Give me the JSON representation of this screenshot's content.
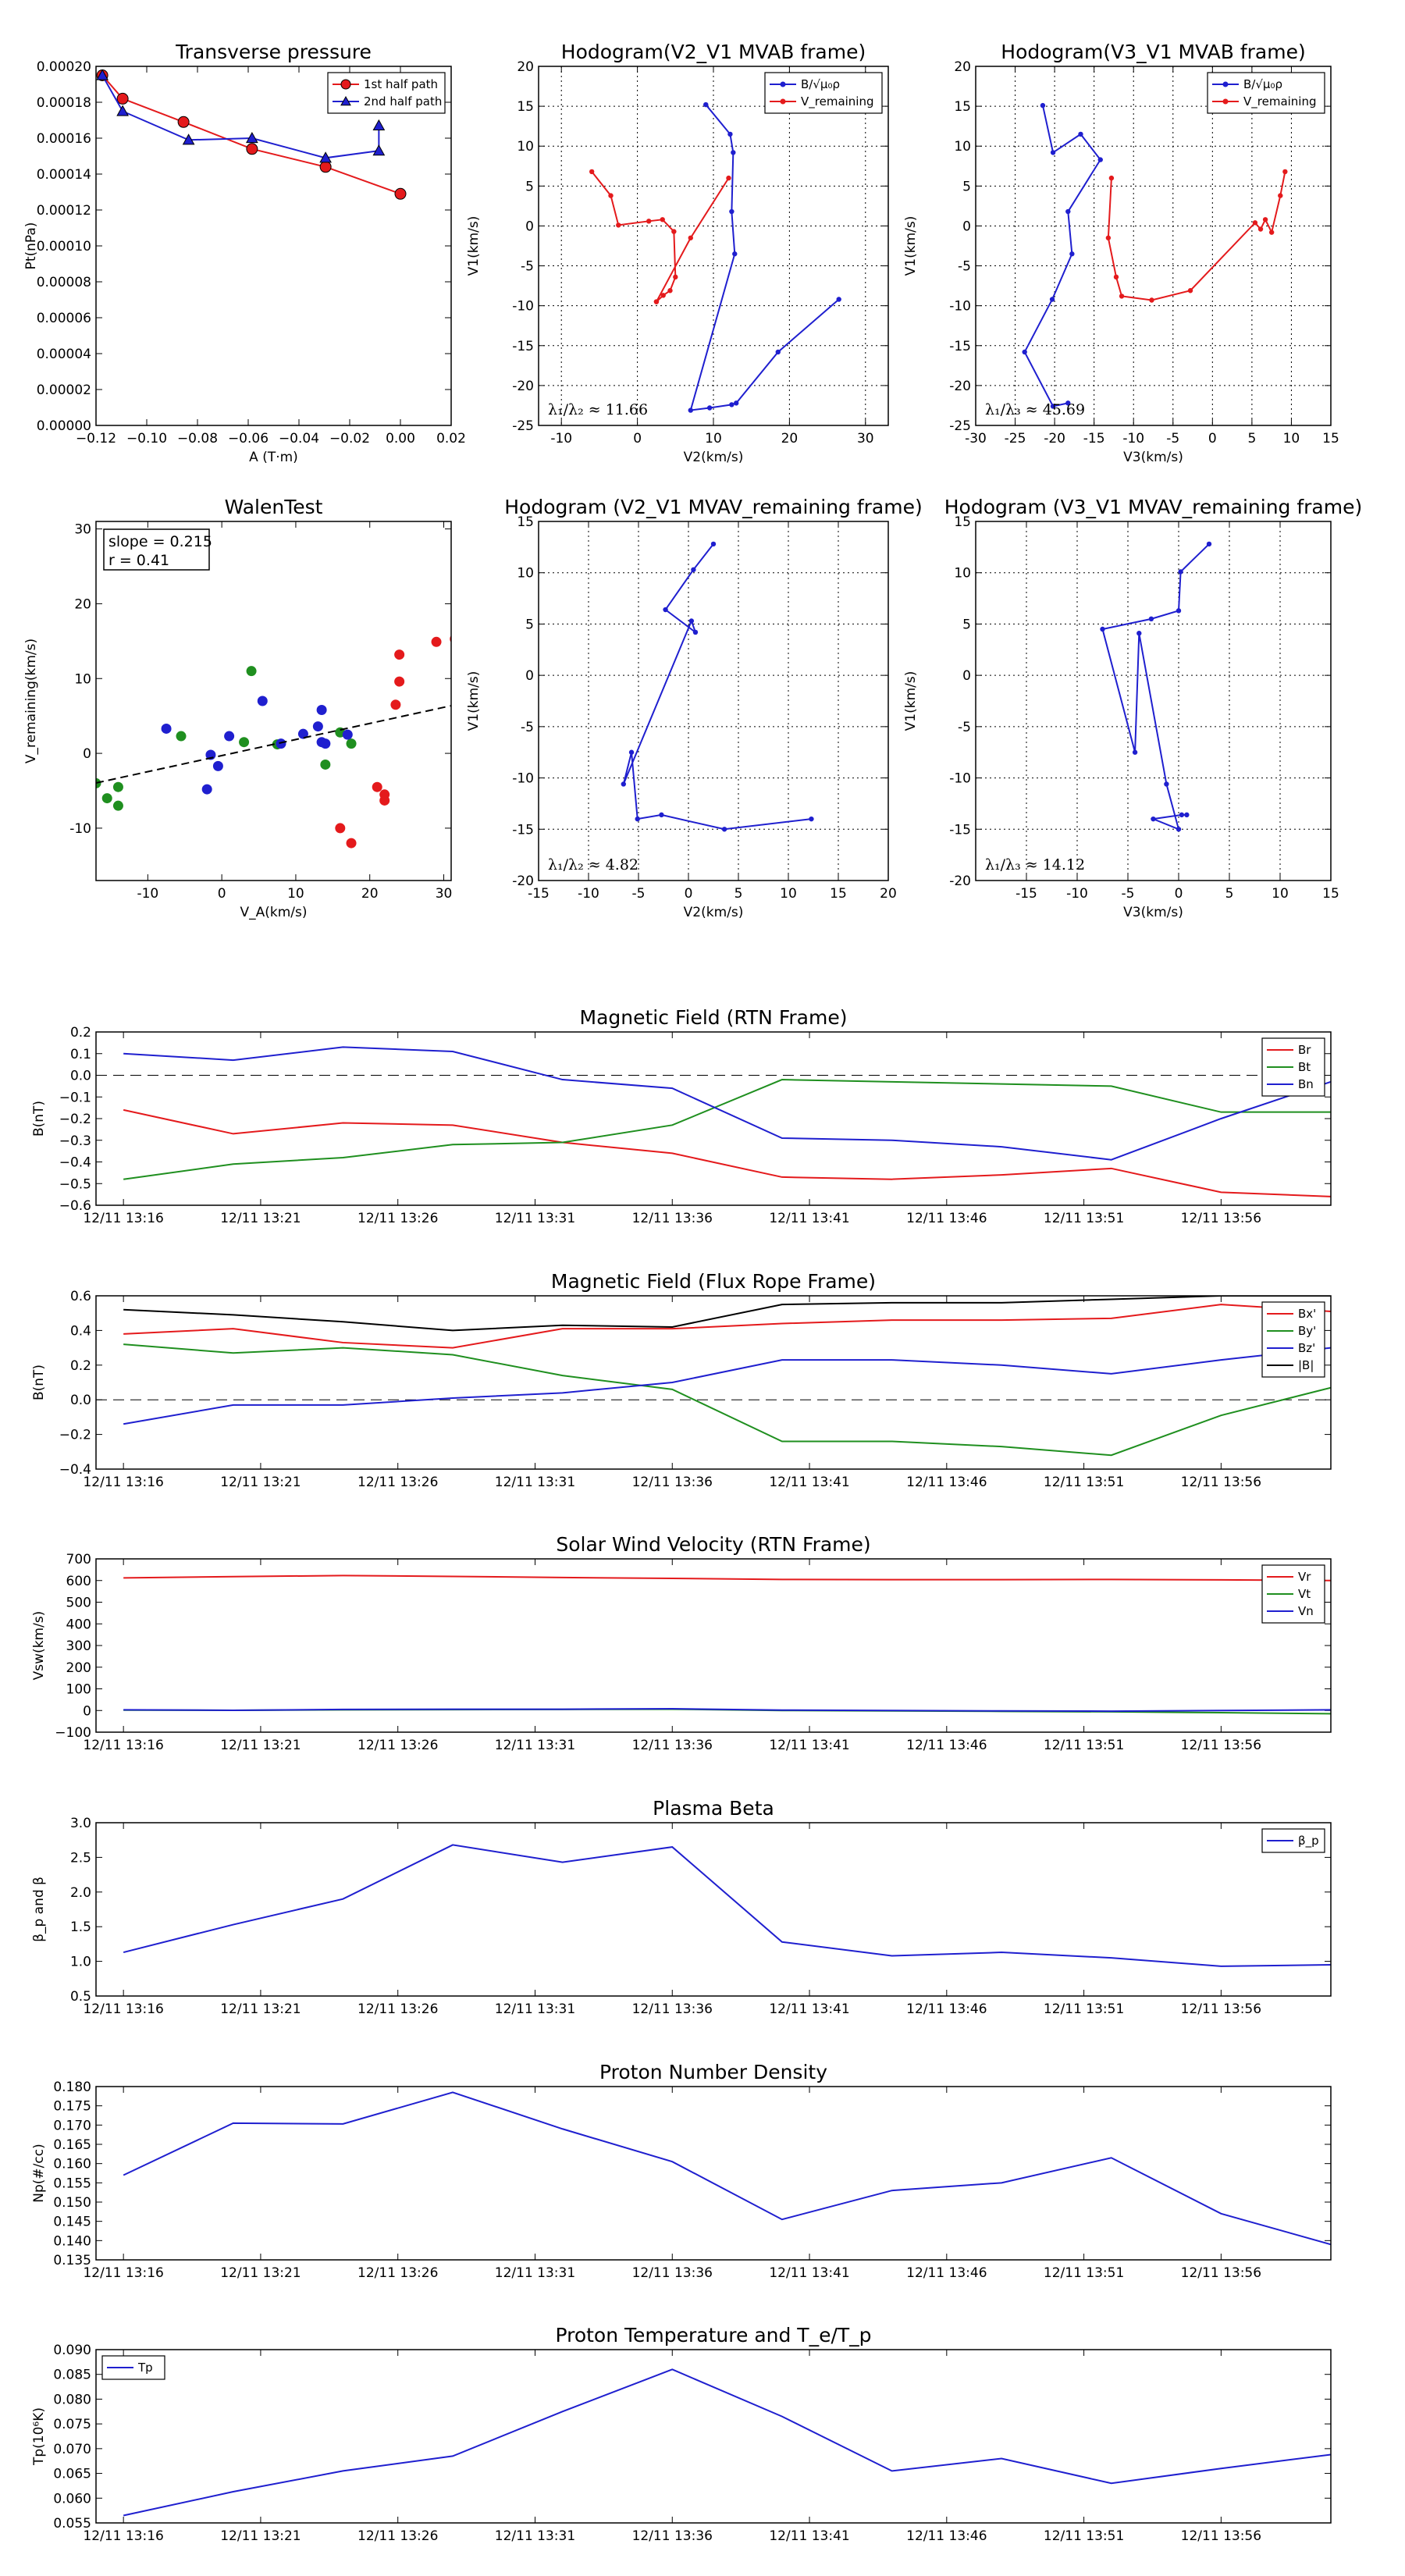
{
  "chart_data": [
    {
      "id": "transverse_pressure",
      "type": "line",
      "title": "Transverse pressure",
      "xlabel": "A (T·m)",
      "ylabel": "Pt(nPa)",
      "xlim": [
        -0.12,
        0.02
      ],
      "ylim": [
        0,
        0.0002
      ],
      "xticks": [
        "−0.12",
        "−0.10",
        "−0.08",
        "−0.06",
        "−0.04",
        "−0.02",
        "0.00",
        "0.02"
      ],
      "yticks": [
        "0.00000",
        "0.00002",
        "0.00004",
        "0.00006",
        "0.00008",
        "0.00010",
        "0.00012",
        "0.00014",
        "0.00016",
        "0.00018",
        "0.00020"
      ],
      "legend": "top-right",
      "series": [
        {
          "name": "1st half path",
          "color": "#e41a1c",
          "marker": "circle",
          "x": [
            -0.1175,
            -0.1095,
            -0.0855,
            -0.0585,
            -0.0295,
            0.0
          ],
          "y": [
            0.000195,
            0.000182,
            0.000169,
            0.000154,
            0.000144,
            0.000129
          ]
        },
        {
          "name": "2nd half path",
          "color": "#1f1fcf",
          "marker": "triangle",
          "x": [
            -0.1175,
            -0.1095,
            -0.0835,
            -0.0585,
            -0.0295,
            -0.0085,
            -0.0085
          ],
          "y": [
            0.000195,
            0.000175,
            0.000159,
            0.00016,
            0.000149,
            0.000153,
            0.000167
          ]
        }
      ]
    },
    {
      "id": "hodogram_v2_mvab",
      "type": "line",
      "title": "Hodogram(V2_V1 MVAB frame)",
      "xlabel": "V2(km/s)",
      "ylabel": "V1(km/s)",
      "xlim": [
        -13,
        33
      ],
      "ylim": [
        -25,
        20
      ],
      "xticks": [
        -10,
        0,
        10,
        20,
        30
      ],
      "yticks": [
        -25,
        -20,
        -15,
        -10,
        -5,
        0,
        5,
        10,
        15,
        20
      ],
      "grid": true,
      "legend": "top-right",
      "annotation": "λ₁/λ₂ ≈ 11.66",
      "series": [
        {
          "name": "B/√μ₀ρ",
          "color": "#1f1fcf",
          "x": [
            26.5,
            18.5,
            13,
            12.4,
            9.5,
            7,
            12.8,
            12.4,
            12.6,
            12.2,
            9
          ],
          "y": [
            -9.2,
            -15.8,
            -22.2,
            -22.4,
            -22.8,
            -23.1,
            -3.5,
            1.8,
            9.2,
            11.5,
            15.2
          ]
        },
        {
          "name": "V_remaining",
          "color": "#e41a1c",
          "x": [
            -6,
            -3.5,
            -2.5,
            1.5,
            3.3,
            4.8,
            5,
            4.3,
            3.4,
            2.5,
            2.5,
            7,
            12
          ],
          "y": [
            6.8,
            3.8,
            0.1,
            0.6,
            0.8,
            -0.7,
            -6.4,
            -8.1,
            -8.7,
            -9.5,
            -9.5,
            -1.5,
            6
          ]
        }
      ]
    },
    {
      "id": "hodogram_v3_mvab",
      "type": "line",
      "title": "Hodogram(V3_V1 MVAB frame)",
      "xlabel": "V3(km/s)",
      "ylabel": "V1(km/s)",
      "xlim": [
        -30,
        15
      ],
      "ylim": [
        -25,
        20
      ],
      "xticks": [
        -30,
        -25,
        -20,
        -15,
        -10,
        -5,
        0,
        5,
        10,
        15
      ],
      "yticks": [
        -25,
        -20,
        -15,
        -10,
        -5,
        0,
        5,
        10,
        15,
        20
      ],
      "grid": true,
      "legend": "top-right",
      "annotation": "λ₁/λ₃ ≈ 45.69",
      "series": [
        {
          "name": "B/√μ₀ρ",
          "color": "#1f1fcf",
          "x": [
            -21.5,
            -20.2,
            -16.7,
            -14.2,
            -18.3,
            -17.8,
            -20.3,
            -23.8,
            -20.2,
            -18.3
          ],
          "y": [
            15.1,
            9.2,
            11.5,
            8.3,
            1.8,
            -3.5,
            -9.2,
            -15.8,
            -22.6,
            -22.2
          ]
        },
        {
          "name": "V_remaining",
          "color": "#e41a1c",
          "x": [
            9.2,
            8.6,
            7.5,
            6.7,
            6.1,
            5.4,
            -2.8,
            -7.7,
            -11.5,
            -12.2,
            -13.2,
            -12.8
          ],
          "y": [
            6.8,
            3.8,
            -0.8,
            0.8,
            -0.4,
            0.4,
            -8.1,
            -9.3,
            -8.8,
            -6.4,
            -1.5,
            6
          ]
        }
      ]
    },
    {
      "id": "walen_test",
      "type": "scatter",
      "title": "WalenTest",
      "xlabel": "V_A(km/s)",
      "ylabel": "V_remaining(km/s)",
      "xlim": [
        -17,
        31
      ],
      "ylim": [
        -17,
        31
      ],
      "xticks": [
        -10,
        0,
        10,
        20,
        30
      ],
      "yticks": [
        -10,
        0,
        10,
        20,
        30
      ],
      "annotation": [
        "slope = 0.215",
        "r = 0.41"
      ],
      "fit": {
        "slope": 0.215,
        "intercept": -0.3,
        "color": "#000000"
      },
      "series": [
        {
          "name": "",
          "color": "#e41a1c",
          "x": [
            29,
            31.5,
            24,
            24,
            23.5,
            21,
            22,
            22,
            16,
            17.5
          ],
          "y": [
            14.9,
            15.3,
            13.2,
            9.6,
            6.5,
            -4.5,
            -5.5,
            -6.3,
            -10,
            -12
          ]
        },
        {
          "name": "",
          "color": "#1f8f1f",
          "x": [
            4,
            -5.5,
            3,
            7.5,
            16,
            17.5,
            14,
            -14,
            -14,
            -15.5,
            -17
          ],
          "y": [
            11,
            2.3,
            1.5,
            1.2,
            2.8,
            1.3,
            -1.5,
            -4.5,
            -7,
            -6,
            -4
          ]
        },
        {
          "name": "",
          "color": "#1f1fcf",
          "x": [
            5.5,
            13.5,
            -7.5,
            1,
            8,
            11,
            13,
            13.5,
            14,
            17,
            -1.5,
            -2,
            -0.5
          ],
          "y": [
            7,
            5.8,
            3.3,
            2.3,
            1.3,
            2.6,
            3.6,
            1.5,
            1.3,
            2.5,
            -0.2,
            -4.8,
            -1.7
          ]
        }
      ]
    },
    {
      "id": "hodogram_v2_mvav",
      "type": "line",
      "title": "Hodogram (V2_V1 MVAV_remaining frame)",
      "xlabel": "V2(km/s)",
      "ylabel": "V1(km/s)",
      "xlim": [
        -15,
        20
      ],
      "ylim": [
        -20,
        15
      ],
      "xticks": [
        -15,
        -10,
        -5,
        0,
        5,
        10,
        15,
        20
      ],
      "yticks": [
        -20,
        -15,
        -10,
        -5,
        0,
        5,
        10,
        15
      ],
      "grid": true,
      "annotation": "λ₁/λ₂ ≈ 4.82",
      "series": [
        {
          "name": "",
          "color": "#1f1fcf",
          "x": [
            12.3,
            3.6,
            -2.7,
            -5.1,
            -5.7,
            -6.5,
            0.3,
            0.7,
            -2.3,
            0.5,
            2.5
          ],
          "y": [
            -14,
            -15,
            -13.6,
            -14,
            -7.5,
            -10.6,
            5.3,
            4.2,
            6.4,
            10.3,
            12.8
          ]
        }
      ]
    },
    {
      "id": "hodogram_v3_mvav",
      "type": "line",
      "title": "Hodogram (V3_V1 MVAV_remaining frame)",
      "xlabel": "V3(km/s)",
      "ylabel": "V1(km/s)",
      "xlim": [
        -20,
        15
      ],
      "ylim": [
        -20,
        15
      ],
      "xticks": [
        -15,
        -10,
        -5,
        0,
        5,
        10,
        15
      ],
      "yticks": [
        -20,
        -15,
        -10,
        -5,
        0,
        5,
        10,
        15
      ],
      "grid": true,
      "annotation": "λ₁/λ₃ ≈ 14.12",
      "series": [
        {
          "name": "",
          "color": "#1f1fcf",
          "x": [
            3,
            0.2,
            0,
            -2.7,
            -7.5,
            -4.3,
            -3.9,
            -1.2,
            0,
            -2.5,
            0.3,
            0.8
          ],
          "y": [
            12.8,
            10.1,
            6.3,
            5.5,
            4.5,
            -7.5,
            4.1,
            -10.6,
            -15,
            -14,
            -13.6,
            -13.6
          ]
        }
      ]
    },
    {
      "id": "magnetic_field_rtn",
      "type": "line",
      "title": "Magnetic Field (RTN Frame)",
      "ylabel": "B(nT)",
      "ylim": [
        -0.6,
        0.2
      ],
      "yticks": [
        "−0.6",
        "−0.5",
        "−0.4",
        "−0.3",
        "−0.2",
        "−0.1",
        "0.0",
        "0.1",
        "0.2"
      ],
      "xticks": [
        "12/11 13:16",
        "12/11 13:21",
        "12/11 13:26",
        "12/11 13:31",
        "12/11 13:36",
        "12/11 13:41",
        "12/11 13:46",
        "12/11 13:51",
        "12/11 13:56"
      ],
      "zero_line": true,
      "legend": "top-right",
      "x": [
        "13:16",
        "13:20",
        "13:24",
        "13:28",
        "13:32",
        "13:36",
        "13:40",
        "13:44",
        "13:48",
        "13:52",
        "13:56",
        "13:60"
      ],
      "series": [
        {
          "name": "Br",
          "color": "#e41a1c",
          "values": [
            -0.16,
            -0.27,
            -0.22,
            -0.23,
            -0.31,
            -0.36,
            -0.47,
            -0.48,
            -0.46,
            -0.43,
            -0.54,
            -0.56
          ]
        },
        {
          "name": "Bt",
          "color": "#1f8f1f",
          "values": [
            -0.48,
            -0.41,
            -0.38,
            -0.32,
            -0.31,
            -0.23,
            -0.02,
            -0.03,
            -0.04,
            -0.05,
            -0.17,
            -0.17
          ]
        },
        {
          "name": "Bn",
          "color": "#1f1fcf",
          "values": [
            0.1,
            0.07,
            0.13,
            0.11,
            -0.02,
            -0.06,
            -0.29,
            -0.3,
            -0.33,
            -0.39,
            -0.2,
            -0.03
          ]
        }
      ]
    },
    {
      "id": "magnetic_field_flux_rope",
      "type": "line",
      "title": "Magnetic Field (Flux Rope Frame)",
      "ylabel": "B(nT)",
      "ylim": [
        -0.4,
        0.6
      ],
      "yticks": [
        "−0.4",
        "−0.2",
        "0.0",
        "0.2",
        "0.4",
        "0.6"
      ],
      "xticks": [
        "12/11 13:16",
        "12/11 13:21",
        "12/11 13:26",
        "12/11 13:31",
        "12/11 13:36",
        "12/11 13:41",
        "12/11 13:46",
        "12/11 13:51",
        "12/11 13:56"
      ],
      "zero_line": true,
      "legend": "top-right",
      "x": [
        "13:16",
        "13:20",
        "13:24",
        "13:28",
        "13:32",
        "13:36",
        "13:40",
        "13:44",
        "13:48",
        "13:52",
        "13:56",
        "13:60"
      ],
      "series": [
        {
          "name": "Bx'",
          "color": "#e41a1c",
          "values": [
            0.38,
            0.41,
            0.33,
            0.3,
            0.41,
            0.41,
            0.44,
            0.46,
            0.46,
            0.47,
            0.55,
            0.51
          ]
        },
        {
          "name": "By'",
          "color": "#1f8f1f",
          "values": [
            0.32,
            0.27,
            0.3,
            0.26,
            0.14,
            0.06,
            -0.24,
            -0.24,
            -0.27,
            -0.32,
            -0.09,
            0.07
          ]
        },
        {
          "name": "Bz'",
          "color": "#1f1fcf",
          "values": [
            -0.14,
            -0.03,
            -0.03,
            0.01,
            0.04,
            0.1,
            0.23,
            0.23,
            0.2,
            0.15,
            0.23,
            0.3
          ]
        },
        {
          "name": "|B|",
          "color": "#000000",
          "values": [
            0.52,
            0.49,
            0.45,
            0.4,
            0.43,
            0.42,
            0.55,
            0.56,
            0.56,
            0.58,
            0.6,
            0.6
          ]
        }
      ]
    },
    {
      "id": "solar_wind_velocity",
      "type": "line",
      "title": "Solar Wind Velocity (RTN Frame)",
      "ylabel": "Vsw(km/s)",
      "ylim": [
        -100,
        700
      ],
      "yticks": [
        "−100",
        "0",
        "100",
        "200",
        "300",
        "400",
        "500",
        "600",
        "700"
      ],
      "xticks": [
        "12/11 13:16",
        "12/11 13:21",
        "12/11 13:26",
        "12/11 13:31",
        "12/11 13:36",
        "12/11 13:41",
        "12/11 13:46",
        "12/11 13:51",
        "12/11 13:56"
      ],
      "legend": "top-right",
      "x": [
        "13:16",
        "13:20",
        "13:24",
        "13:28",
        "13:32",
        "13:36",
        "13:40",
        "13:44",
        "13:48",
        "13:52",
        "13:56",
        "13:60"
      ],
      "series": [
        {
          "name": "Vr",
          "color": "#e41a1c",
          "values": [
            612,
            618,
            623,
            619,
            614,
            610,
            605,
            604,
            604,
            605,
            603,
            600
          ]
        },
        {
          "name": "Vt",
          "color": "#1f8f1f",
          "values": [
            2,
            1,
            3,
            4,
            5,
            6,
            0,
            -2,
            -4,
            -6,
            -10,
            -15
          ]
        },
        {
          "name": "Vn",
          "color": "#1f1fcf",
          "values": [
            3,
            1,
            5,
            6,
            6,
            8,
            2,
            0,
            -2,
            -3,
            0,
            3
          ]
        }
      ]
    },
    {
      "id": "plasma_beta",
      "type": "line",
      "title": "Plasma Beta",
      "ylabel": "β_p and β",
      "ylim": [
        0.5,
        3.0
      ],
      "yticks": [
        "0.5",
        "1.0",
        "1.5",
        "2.0",
        "2.5",
        "3.0"
      ],
      "xticks": [
        "12/11 13:16",
        "12/11 13:21",
        "12/11 13:26",
        "12/11 13:31",
        "12/11 13:36",
        "12/11 13:41",
        "12/11 13:46",
        "12/11 13:51",
        "12/11 13:56"
      ],
      "legend": "top-right",
      "x": [
        "13:16",
        "13:20",
        "13:24",
        "13:28",
        "13:32",
        "13:36",
        "13:40",
        "13:44",
        "13:48",
        "13:52",
        "13:56",
        "13:60"
      ],
      "series": [
        {
          "name": "β_p",
          "color": "#1f1fcf",
          "values": [
            1.13,
            1.53,
            1.9,
            2.68,
            2.43,
            2.65,
            1.28,
            1.08,
            1.13,
            1.05,
            0.93,
            0.95
          ]
        }
      ]
    },
    {
      "id": "proton_number_density",
      "type": "line",
      "title": "Proton Number Density",
      "ylabel": "Np(#/cc)",
      "ylim": [
        0.135,
        0.18
      ],
      "yticks": [
        "0.135",
        "0.140",
        "0.145",
        "0.150",
        "0.155",
        "0.160",
        "0.165",
        "0.170",
        "0.175",
        "0.180"
      ],
      "xticks": [
        "12/11 13:16",
        "12/11 13:21",
        "12/11 13:26",
        "12/11 13:31",
        "12/11 13:36",
        "12/11 13:41",
        "12/11 13:46",
        "12/11 13:51",
        "12/11 13:56"
      ],
      "x": [
        "13:16",
        "13:20",
        "13:24",
        "13:28",
        "13:32",
        "13:36",
        "13:40",
        "13:44",
        "13:48",
        "13:52",
        "13:56",
        "13:60"
      ],
      "series": [
        {
          "name": "",
          "color": "#1f1fcf",
          "values": [
            0.157,
            0.1705,
            0.1703,
            0.1785,
            0.169,
            0.1605,
            0.1455,
            0.153,
            0.155,
            0.1615,
            0.147,
            0.139
          ]
        }
      ]
    },
    {
      "id": "proton_temperature",
      "type": "line",
      "title": "Proton Temperature and T_e/T_p",
      "ylabel": "Tp(10⁶K)",
      "ylim": [
        0.055,
        0.09
      ],
      "yticks": [
        "0.055",
        "0.060",
        "0.065",
        "0.070",
        "0.075",
        "0.080",
        "0.085",
        "0.090"
      ],
      "xticks": [
        "12/11 13:16",
        "12/11 13:21",
        "12/11 13:26",
        "12/11 13:31",
        "12/11 13:36",
        "12/11 13:41",
        "12/11 13:46",
        "12/11 13:51",
        "12/11 13:56"
      ],
      "legend": "top-left",
      "x": [
        "13:16",
        "13:20",
        "13:24",
        "13:28",
        "13:32",
        "13:36",
        "13:40",
        "13:44",
        "13:48",
        "13:52",
        "13:56",
        "13:60"
      ],
      "series": [
        {
          "name": "Tp",
          "color": "#1f1fcf",
          "values": [
            0.0565,
            0.0613,
            0.0655,
            0.0685,
            0.0775,
            0.086,
            0.0765,
            0.0655,
            0.068,
            0.063,
            0.066,
            0.0688
          ]
        }
      ]
    }
  ]
}
